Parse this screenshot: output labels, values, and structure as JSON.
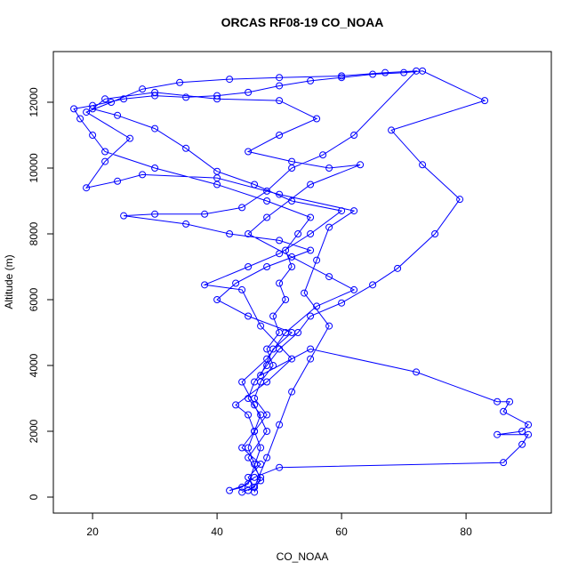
{
  "chart_data": {
    "type": "line",
    "title": "ORCAS RF08-19 CO_NOAA",
    "x_label": "CO_NOAA",
    "y_label": "Altitude (m)",
    "color": "#0000ff",
    "markers": "open-circle",
    "xlim": [
      13.7,
      93.7
    ],
    "ylim": [
      -486,
      13540
    ],
    "xticks": [
      20,
      40,
      60,
      80
    ],
    "yticks": [
      0,
      2000,
      4000,
      6000,
      8000,
      10000,
      12000
    ],
    "x": [
      44,
      46,
      45,
      47,
      44,
      46,
      48,
      46,
      47,
      49,
      48,
      50,
      49,
      51,
      50,
      52,
      51,
      53,
      55,
      48,
      40,
      30,
      22,
      20,
      18,
      17,
      20,
      25,
      30,
      35,
      40,
      45,
      50,
      55,
      60,
      65,
      70,
      73,
      83,
      68,
      73,
      79,
      75,
      69,
      65,
      60,
      55,
      53,
      50,
      48,
      46,
      45,
      47,
      46,
      45,
      46,
      47,
      45,
      46,
      48,
      50,
      52,
      55,
      58,
      54,
      56,
      58,
      62,
      50,
      40,
      28,
      24,
      19,
      22,
      26,
      19,
      23,
      28,
      34,
      42,
      50,
      60,
      67,
      72,
      62,
      57,
      52,
      48,
      44,
      38,
      30,
      25,
      35,
      42,
      50,
      55,
      48,
      43,
      40,
      45,
      52,
      49,
      47,
      55,
      72,
      85,
      87,
      86,
      90,
      89,
      85,
      90,
      89,
      86,
      50,
      46,
      44,
      42,
      45,
      47,
      45,
      43,
      48,
      52,
      47,
      44,
      38,
      45,
      50,
      55,
      60,
      52,
      46,
      40,
      35,
      30,
      24,
      20,
      22,
      30,
      40,
      50,
      56,
      50,
      45,
      52,
      58,
      63,
      55,
      48,
      45,
      52,
      58,
      62,
      56,
      51,
      48,
      44,
      46,
      48,
      45,
      47,
      46
    ],
    "values": [
      150,
      300,
      600,
      1000,
      1500,
      2000,
      2500,
      3000,
      3500,
      4000,
      4500,
      5000,
      5500,
      6000,
      6500,
      7000,
      7500,
      8000,
      8500,
      9000,
      9500,
      10000,
      10500,
      11000,
      11500,
      11800,
      11900,
      12100,
      12200,
      12150,
      12200,
      12300,
      12500,
      12650,
      12750,
      12850,
      12900,
      12950,
      12050,
      11150,
      10100,
      9050,
      8000,
      6950,
      6450,
      5900,
      5500,
      5000,
      4500,
      4000,
      3500,
      3000,
      2500,
      2000,
      1500,
      1000,
      500,
      200,
      300,
      1200,
      2200,
      3200,
      4200,
      5200,
      6200,
      7200,
      8200,
      8700,
      9200,
      9700,
      9800,
      9600,
      9400,
      10200,
      10900,
      11700,
      12000,
      12400,
      12600,
      12700,
      12750,
      12800,
      12900,
      12950,
      11000,
      10400,
      10000,
      9300,
      8800,
      8600,
      8600,
      8550,
      8300,
      8000,
      7800,
      7500,
      7000,
      6500,
      6000,
      5500,
      5000,
      4500,
      3700,
      4500,
      3800,
      2900,
      2900,
      2600,
      2200,
      2000,
      1900,
      1900,
      1600,
      1050,
      900,
      600,
      300,
      200,
      400,
      1500,
      2500,
      2800,
      3500,
      4200,
      5200,
      6300,
      6450,
      7000,
      7400,
      8000,
      8700,
      9000,
      9500,
      9900,
      10600,
      11200,
      11600,
      11800,
      12100,
      12300,
      12100,
      12050,
      11500,
      11000,
      10500,
      10200,
      10000,
      10100,
      9500,
      8500,
      8000,
      7300,
      6700,
      6300,
      5800,
      5000,
      4200,
      3500,
      2800,
      2000,
      1200,
      600,
      150
    ]
  }
}
